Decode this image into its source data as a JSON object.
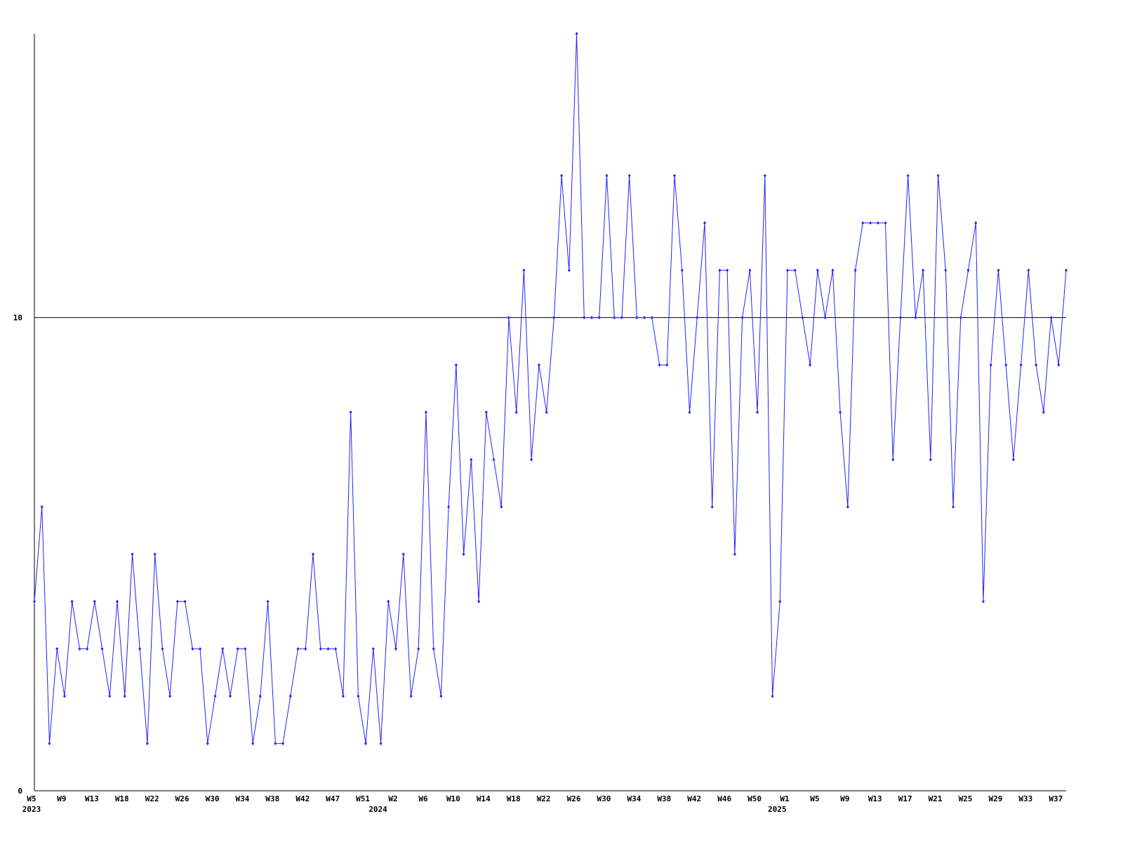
{
  "chart_data": {
    "type": "line",
    "categories": [
      "W5",
      null,
      null,
      null,
      "W9",
      null,
      null,
      null,
      "W13",
      null,
      null,
      null,
      "W18",
      null,
      null,
      null,
      "W22",
      null,
      null,
      null,
      "W26",
      null,
      null,
      null,
      "W30",
      null,
      null,
      null,
      "W34",
      null,
      null,
      null,
      "W38",
      null,
      null,
      null,
      "W42",
      null,
      null,
      null,
      "W47",
      null,
      null,
      null,
      "W51",
      null,
      null,
      null,
      "W2",
      null,
      null,
      null,
      "W6",
      null,
      null,
      null,
      "W10",
      null,
      null,
      null,
      "W14",
      null,
      null,
      null,
      "W18",
      null,
      null,
      null,
      "W22",
      null,
      null,
      null,
      "W26",
      null,
      null,
      null,
      "W30",
      null,
      null,
      null,
      "W34",
      null,
      null,
      null,
      "W38",
      null,
      null,
      null,
      "W42",
      null,
      null,
      null,
      "W46",
      null,
      null,
      null,
      "W50",
      null,
      null,
      null,
      "W1",
      null,
      null,
      null,
      "W5",
      null,
      null,
      null,
      "W9",
      null,
      null,
      null,
      "W13",
      null,
      null,
      null,
      "W17",
      null,
      null,
      null,
      "W21",
      null,
      null,
      null,
      "W25",
      null,
      null,
      null,
      "W29",
      null,
      null,
      null,
      "W33",
      null,
      null,
      null,
      "W37",
      null
    ],
    "year_categories": [
      "2023",
      null,
      null,
      null,
      null,
      null,
      null,
      null,
      null,
      null,
      null,
      null,
      null,
      null,
      null,
      null,
      null,
      null,
      null,
      null,
      null,
      null,
      null,
      null,
      null,
      null,
      null,
      null,
      null,
      null,
      null,
      null,
      null,
      null,
      null,
      null,
      null,
      null,
      null,
      null,
      null,
      null,
      null,
      null,
      null,
      null,
      "2024",
      null,
      null,
      null,
      null,
      null,
      null,
      null,
      null,
      null,
      null,
      null,
      null,
      null,
      null,
      null,
      null,
      null,
      null,
      null,
      null,
      null,
      null,
      null,
      null,
      null,
      null,
      null,
      null,
      null,
      null,
      null,
      null,
      null,
      null,
      null,
      null,
      null,
      null,
      null,
      null,
      null,
      null,
      null,
      null,
      null,
      null,
      null,
      null,
      null,
      null,
      null,
      null,
      "2025",
      null,
      null,
      null,
      null,
      null,
      null,
      null,
      null,
      null,
      null,
      null,
      null,
      null,
      null,
      null,
      null,
      null,
      null,
      null,
      null,
      null,
      null,
      null,
      null,
      null,
      null,
      null,
      null,
      null,
      null,
      null,
      null,
      null,
      null,
      null,
      null,
      null,
      null
    ],
    "series": [
      {
        "color": "#2222ff",
        "values": [
          4,
          6,
          1,
          3,
          2,
          4,
          3,
          3,
          4,
          3,
          2,
          4,
          2,
          5,
          3,
          1,
          5,
          3,
          2,
          4,
          4,
          3,
          3,
          1,
          2,
          3,
          2,
          3,
          3,
          1,
          2,
          4,
          1,
          1,
          2,
          3,
          3,
          5,
          3,
          3,
          3,
          2,
          8,
          2,
          1,
          3,
          1,
          4,
          3,
          5,
          2,
          3,
          8,
          3,
          2,
          6,
          9,
          5,
          7,
          4,
          8,
          7,
          6,
          10,
          8,
          11,
          7,
          9,
          8,
          10,
          13,
          11,
          16,
          10,
          10,
          10,
          13,
          10,
          10,
          13,
          10,
          10,
          10,
          9,
          9,
          13,
          11,
          8,
          10,
          12,
          6,
          11,
          11,
          5,
          10,
          11,
          8,
          13,
          2,
          4,
          11,
          11,
          10,
          9,
          11,
          10,
          11,
          8,
          6,
          11,
          12,
          12,
          12,
          12,
          7,
          10,
          13,
          10,
          11,
          7,
          13,
          11,
          6,
          10,
          11,
          12,
          4,
          9,
          11,
          9,
          7,
          9,
          11,
          9,
          8,
          10,
          9,
          11
        ]
      }
    ],
    "ylim": [
      0,
      16
    ],
    "yticks": [
      0,
      10
    ],
    "grid": true
  }
}
